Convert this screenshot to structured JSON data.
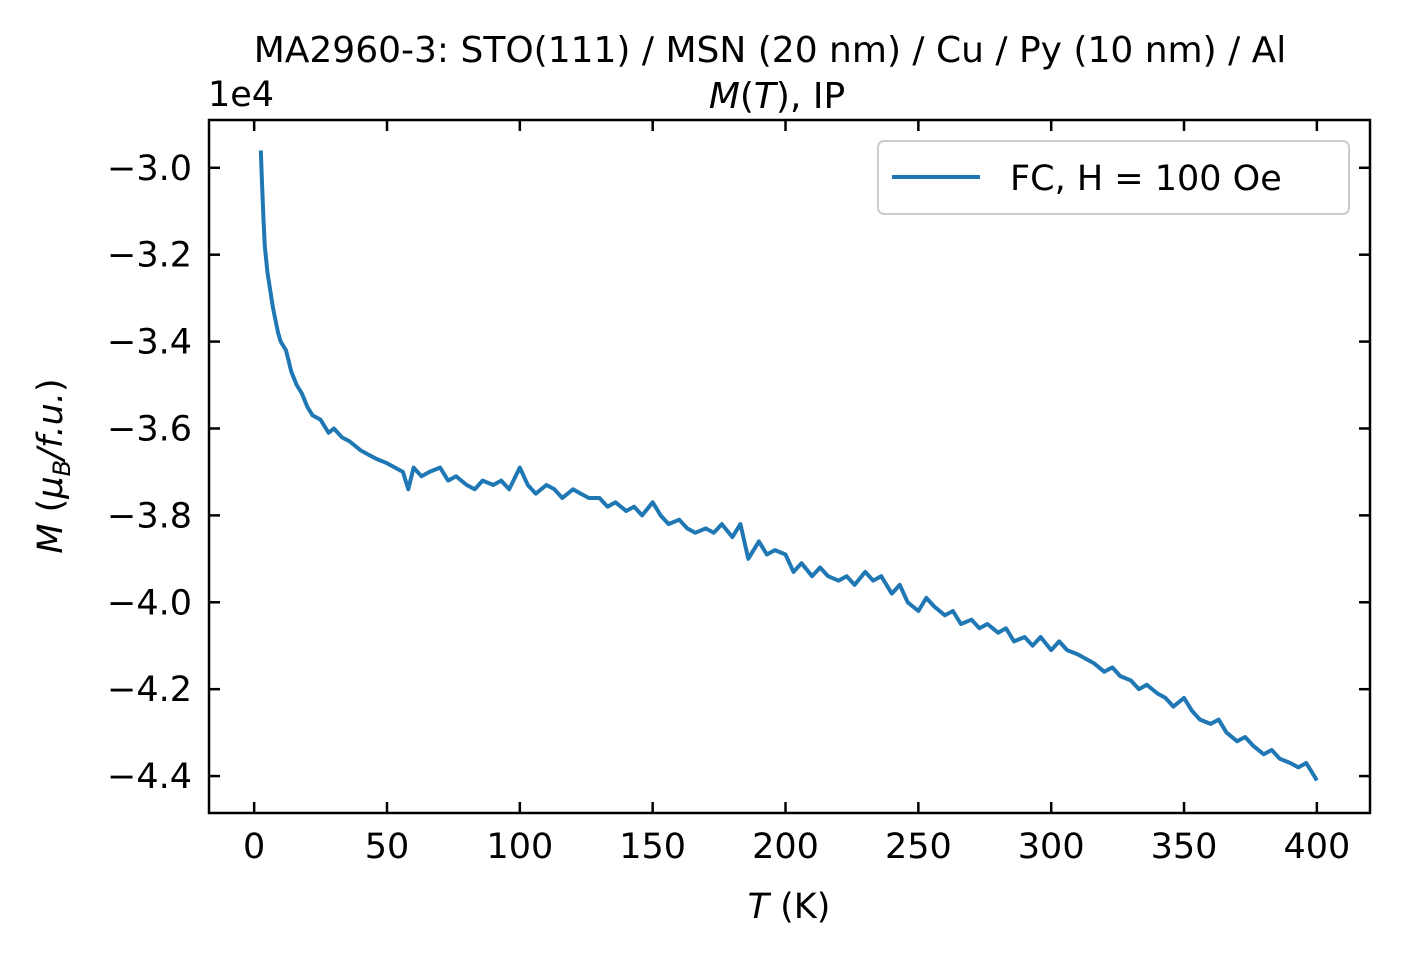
{
  "chart_data": {
    "type": "line",
    "title_line1": "MA2960-3: STO(111)  / MSN (20 nm) / Cu / Py (10 nm) / Al",
    "title_line2_italic": "M",
    "title_line2_paren_open": "(",
    "title_line2_var": "T",
    "title_line2_rest": "), IP",
    "xlabel_var": "T",
    "xlabel_unit": " (K)",
    "ylabel_var": "M",
    "ylabel_unit_open": " (",
    "ylabel_mu": "μ",
    "ylabel_sub": "B",
    "ylabel_unit_rest": "/f.u.",
    "ylabel_unit_close": ")",
    "y_offset_label": "1e4",
    "xlim": [
      -17,
      420
    ],
    "ylim": [
      -4.485,
      -2.89
    ],
    "x_ticks": [
      0,
      50,
      100,
      150,
      200,
      250,
      300,
      350,
      400
    ],
    "x_tick_labels": [
      "0",
      "50",
      "100",
      "150",
      "200",
      "250",
      "300",
      "350",
      "400"
    ],
    "y_ticks": [
      -3.0,
      -3.2,
      -3.4,
      -3.6,
      -3.8,
      -4.0,
      -4.2,
      -4.4
    ],
    "y_tick_labels": [
      "−3.0",
      "−3.2",
      "−3.4",
      "−3.6",
      "−3.8",
      "−4.0",
      "−4.2",
      "−4.4"
    ],
    "grid": false,
    "legend_position": "top-right",
    "series": [
      {
        "name": "FC, H = 100 Oe",
        "color": "#1f77b4",
        "x": [
          2.5,
          3,
          3.5,
          4,
          5,
          6,
          7,
          8,
          9,
          10,
          12,
          14,
          16,
          18,
          20,
          22,
          25,
          28,
          30,
          33,
          36,
          40,
          43,
          46,
          50,
          53,
          56,
          58,
          60,
          63,
          66,
          70,
          73,
          76,
          80,
          83,
          86,
          90,
          93,
          96,
          100,
          103,
          106,
          110,
          113,
          116,
          120,
          123,
          126,
          130,
          133,
          136,
          140,
          143,
          146,
          150,
          153,
          156,
          160,
          163,
          166,
          170,
          173,
          176,
          180,
          183,
          186,
          190,
          193,
          196,
          200,
          203,
          206,
          210,
          213,
          216,
          220,
          223,
          226,
          230,
          233,
          236,
          240,
          243,
          246,
          250,
          253,
          256,
          260,
          263,
          266,
          270,
          273,
          276,
          280,
          283,
          286,
          290,
          293,
          296,
          300,
          303,
          306,
          310,
          313,
          316,
          320,
          323,
          326,
          330,
          333,
          336,
          340,
          343,
          346,
          350,
          353,
          356,
          360,
          363,
          366,
          370,
          373,
          376,
          380,
          383,
          386,
          390,
          393,
          396,
          398,
          400
        ],
        "y": [
          -2.96,
          -3.04,
          -3.12,
          -3.18,
          -3.24,
          -3.28,
          -3.32,
          -3.35,
          -3.38,
          -3.4,
          -3.42,
          -3.47,
          -3.5,
          -3.52,
          -3.55,
          -3.57,
          -3.58,
          -3.61,
          -3.6,
          -3.62,
          -3.63,
          -3.65,
          -3.66,
          -3.67,
          -3.68,
          -3.69,
          -3.7,
          -3.74,
          -3.69,
          -3.71,
          -3.7,
          -3.69,
          -3.72,
          -3.71,
          -3.73,
          -3.74,
          -3.72,
          -3.73,
          -3.72,
          -3.74,
          -3.69,
          -3.73,
          -3.75,
          -3.73,
          -3.74,
          -3.76,
          -3.74,
          -3.75,
          -3.76,
          -3.76,
          -3.78,
          -3.77,
          -3.79,
          -3.78,
          -3.8,
          -3.77,
          -3.8,
          -3.82,
          -3.81,
          -3.83,
          -3.84,
          -3.83,
          -3.84,
          -3.82,
          -3.85,
          -3.82,
          -3.9,
          -3.86,
          -3.89,
          -3.88,
          -3.89,
          -3.93,
          -3.91,
          -3.94,
          -3.92,
          -3.94,
          -3.95,
          -3.94,
          -3.96,
          -3.93,
          -3.95,
          -3.94,
          -3.98,
          -3.96,
          -4.0,
          -4.02,
          -3.99,
          -4.01,
          -4.03,
          -4.02,
          -4.05,
          -4.04,
          -4.06,
          -4.05,
          -4.07,
          -4.06,
          -4.09,
          -4.08,
          -4.1,
          -4.08,
          -4.11,
          -4.09,
          -4.11,
          -4.12,
          -4.13,
          -4.14,
          -4.16,
          -4.15,
          -4.17,
          -4.18,
          -4.2,
          -4.19,
          -4.21,
          -4.22,
          -4.24,
          -4.22,
          -4.25,
          -4.27,
          -4.28,
          -4.27,
          -4.3,
          -4.32,
          -4.31,
          -4.33,
          -4.35,
          -4.34,
          -4.36,
          -4.37,
          -4.38,
          -4.37,
          -4.39,
          -4.41
        ]
      }
    ]
  }
}
